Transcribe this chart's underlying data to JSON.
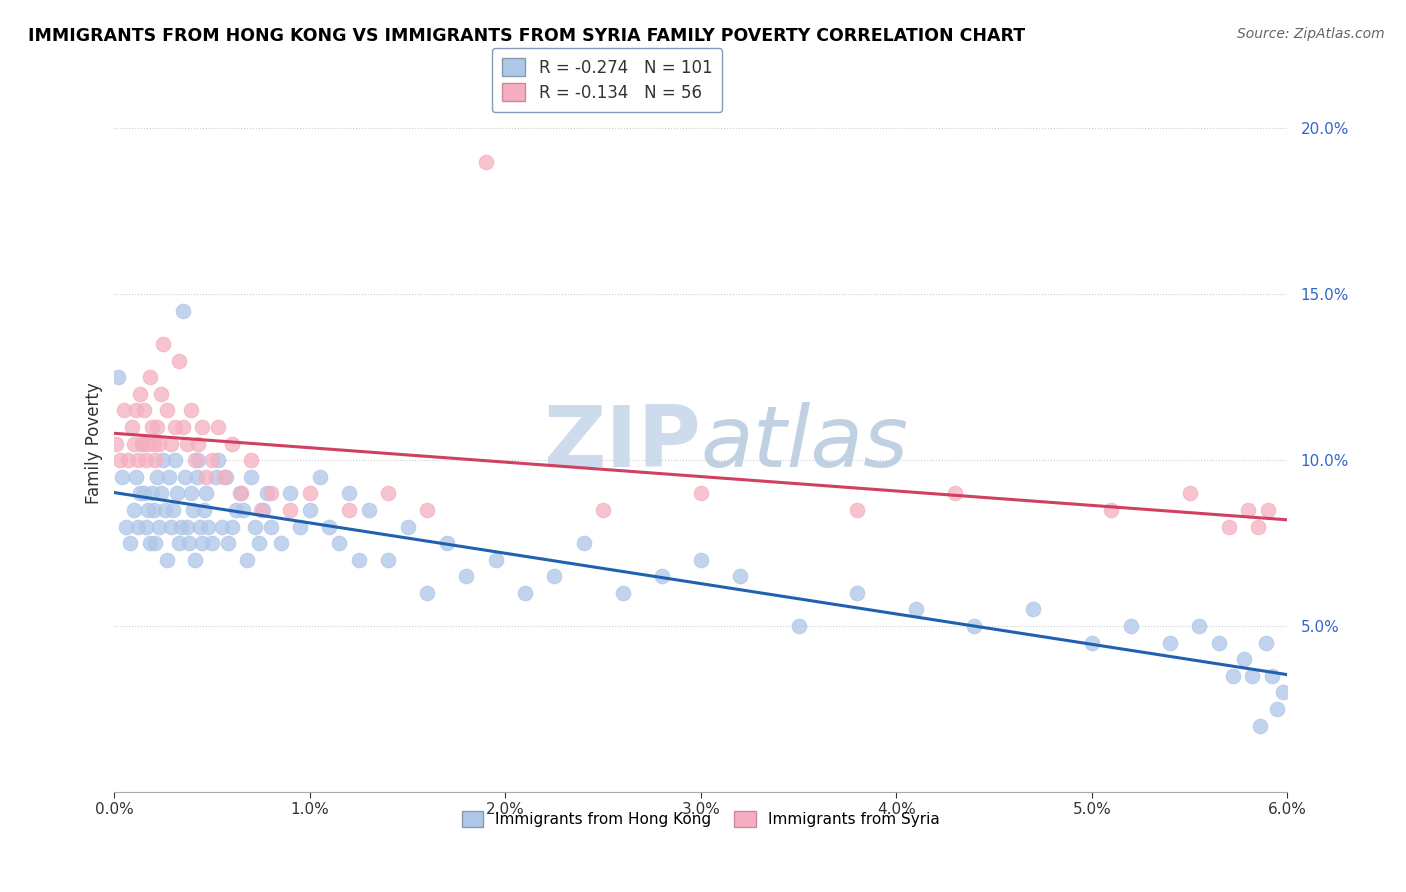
{
  "title": "IMMIGRANTS FROM HONG KONG VS IMMIGRANTS FROM SYRIA FAMILY POVERTY CORRELATION CHART",
  "source": "Source: ZipAtlas.com",
  "ylabel": "Family Poverty",
  "xmin": 0.0,
  "xmax": 6.0,
  "ymin": 0.0,
  "ymax": 21.0,
  "yticks": [
    0.0,
    5.0,
    10.0,
    15.0,
    20.0
  ],
  "xticks": [
    0,
    1,
    2,
    3,
    4,
    5,
    6
  ],
  "legend_hk_r": "-0.274",
  "legend_hk_n": "101",
  "legend_sy_r": "-0.134",
  "legend_sy_n": "56",
  "color_hk": "#aec6e8",
  "color_sy": "#f5afc0",
  "color_hk_line": "#2060b0",
  "color_sy_line": "#d04060",
  "color_watermark": "#c8d8ec",
  "hk_x": [
    0.02,
    0.04,
    0.06,
    0.08,
    0.1,
    0.11,
    0.12,
    0.13,
    0.14,
    0.15,
    0.16,
    0.17,
    0.18,
    0.19,
    0.2,
    0.21,
    0.22,
    0.23,
    0.24,
    0.25,
    0.26,
    0.27,
    0.28,
    0.29,
    0.3,
    0.31,
    0.32,
    0.33,
    0.34,
    0.35,
    0.36,
    0.37,
    0.38,
    0.39,
    0.4,
    0.41,
    0.42,
    0.43,
    0.44,
    0.45,
    0.46,
    0.47,
    0.48,
    0.5,
    0.52,
    0.53,
    0.55,
    0.57,
    0.58,
    0.6,
    0.62,
    0.64,
    0.66,
    0.68,
    0.7,
    0.72,
    0.74,
    0.76,
    0.78,
    0.8,
    0.85,
    0.9,
    0.95,
    1.0,
    1.05,
    1.1,
    1.15,
    1.2,
    1.25,
    1.3,
    1.4,
    1.5,
    1.6,
    1.7,
    1.8,
    1.95,
    2.1,
    2.25,
    2.4,
    2.6,
    2.8,
    3.0,
    3.2,
    3.5,
    3.8,
    4.1,
    4.4,
    4.7,
    5.0,
    5.2,
    5.4,
    5.55,
    5.65,
    5.72,
    5.78,
    5.82,
    5.86,
    5.89,
    5.92,
    5.95,
    5.98
  ],
  "hk_y": [
    12.5,
    9.5,
    8.0,
    7.5,
    8.5,
    9.5,
    8.0,
    9.0,
    10.5,
    9.0,
    8.0,
    8.5,
    7.5,
    9.0,
    8.5,
    7.5,
    9.5,
    8.0,
    9.0,
    10.0,
    8.5,
    7.0,
    9.5,
    8.0,
    8.5,
    10.0,
    9.0,
    7.5,
    8.0,
    14.5,
    9.5,
    8.0,
    7.5,
    9.0,
    8.5,
    7.0,
    9.5,
    10.0,
    8.0,
    7.5,
    8.5,
    9.0,
    8.0,
    7.5,
    9.5,
    10.0,
    8.0,
    9.5,
    7.5,
    8.0,
    8.5,
    9.0,
    8.5,
    7.0,
    9.5,
    8.0,
    7.5,
    8.5,
    9.0,
    8.0,
    7.5,
    9.0,
    8.0,
    8.5,
    9.5,
    8.0,
    7.5,
    9.0,
    7.0,
    8.5,
    7.0,
    8.0,
    6.0,
    7.5,
    6.5,
    7.0,
    6.0,
    6.5,
    7.5,
    6.0,
    6.5,
    7.0,
    6.5,
    5.0,
    6.0,
    5.5,
    5.0,
    5.5,
    4.5,
    5.0,
    4.5,
    5.0,
    4.5,
    3.5,
    4.0,
    3.5,
    2.0,
    4.5,
    3.5,
    2.5,
    3.0
  ],
  "sy_x": [
    0.01,
    0.03,
    0.05,
    0.07,
    0.09,
    0.1,
    0.11,
    0.12,
    0.13,
    0.14,
    0.15,
    0.16,
    0.17,
    0.18,
    0.19,
    0.2,
    0.21,
    0.22,
    0.23,
    0.24,
    0.25,
    0.27,
    0.29,
    0.31,
    0.33,
    0.35,
    0.37,
    0.39,
    0.41,
    0.43,
    0.45,
    0.47,
    0.5,
    0.53,
    0.56,
    0.6,
    0.65,
    0.7,
    0.75,
    0.8,
    0.9,
    1.0,
    1.2,
    1.4,
    1.6,
    1.9,
    2.5,
    3.0,
    3.8,
    4.3,
    5.1,
    5.5,
    5.7,
    5.8,
    5.85,
    5.9
  ],
  "sy_y": [
    10.5,
    10.0,
    11.5,
    10.0,
    11.0,
    10.5,
    11.5,
    10.0,
    12.0,
    10.5,
    11.5,
    10.0,
    10.5,
    12.5,
    11.0,
    10.5,
    10.0,
    11.0,
    10.5,
    12.0,
    13.5,
    11.5,
    10.5,
    11.0,
    13.0,
    11.0,
    10.5,
    11.5,
    10.0,
    10.5,
    11.0,
    9.5,
    10.0,
    11.0,
    9.5,
    10.5,
    9.0,
    10.0,
    8.5,
    9.0,
    8.5,
    9.0,
    8.5,
    9.0,
    8.5,
    19.0,
    8.5,
    9.0,
    8.5,
    9.0,
    8.5,
    9.0,
    8.0,
    8.5,
    8.0,
    8.5
  ]
}
